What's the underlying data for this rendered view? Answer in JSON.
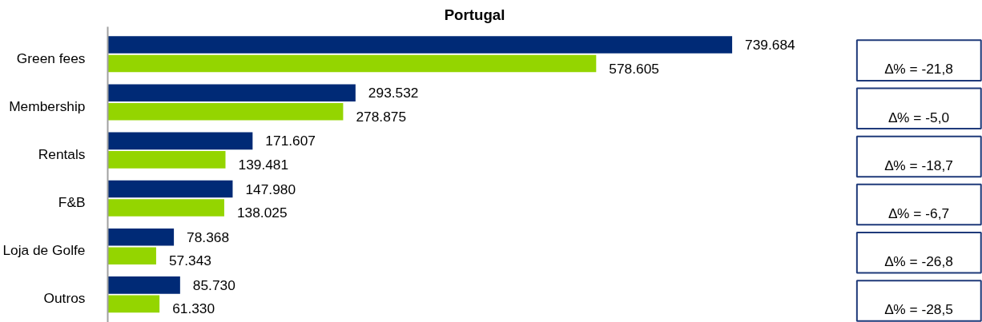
{
  "chart_data": {
    "type": "bar",
    "orientation": "horizontal",
    "title": "Portugal",
    "categories": [
      "Green fees",
      "Membership",
      "Rentals",
      "F&B",
      "Loja de Golfe",
      "Outros"
    ],
    "series": [
      {
        "color": "#002a76",
        "values": [
          739684,
          293532,
          171607,
          147980,
          78368,
          85730
        ],
        "value_labels": [
          "739.684",
          "293.532",
          "171.607",
          "147.980",
          "78.368",
          "85.730"
        ]
      },
      {
        "color": "#94d500",
        "values": [
          578605,
          278875,
          139481,
          138025,
          57343,
          61330
        ],
        "value_labels": [
          "578.605",
          "278.875",
          "139.481",
          "138.025",
          "57.343",
          "61.330"
        ]
      }
    ],
    "annotations": [
      "∆% = -21,8",
      "∆% = -5,0",
      "∆% = -18,7",
      "∆% = -6,7",
      "∆% = -26,8",
      "∆% = -28,5"
    ]
  }
}
